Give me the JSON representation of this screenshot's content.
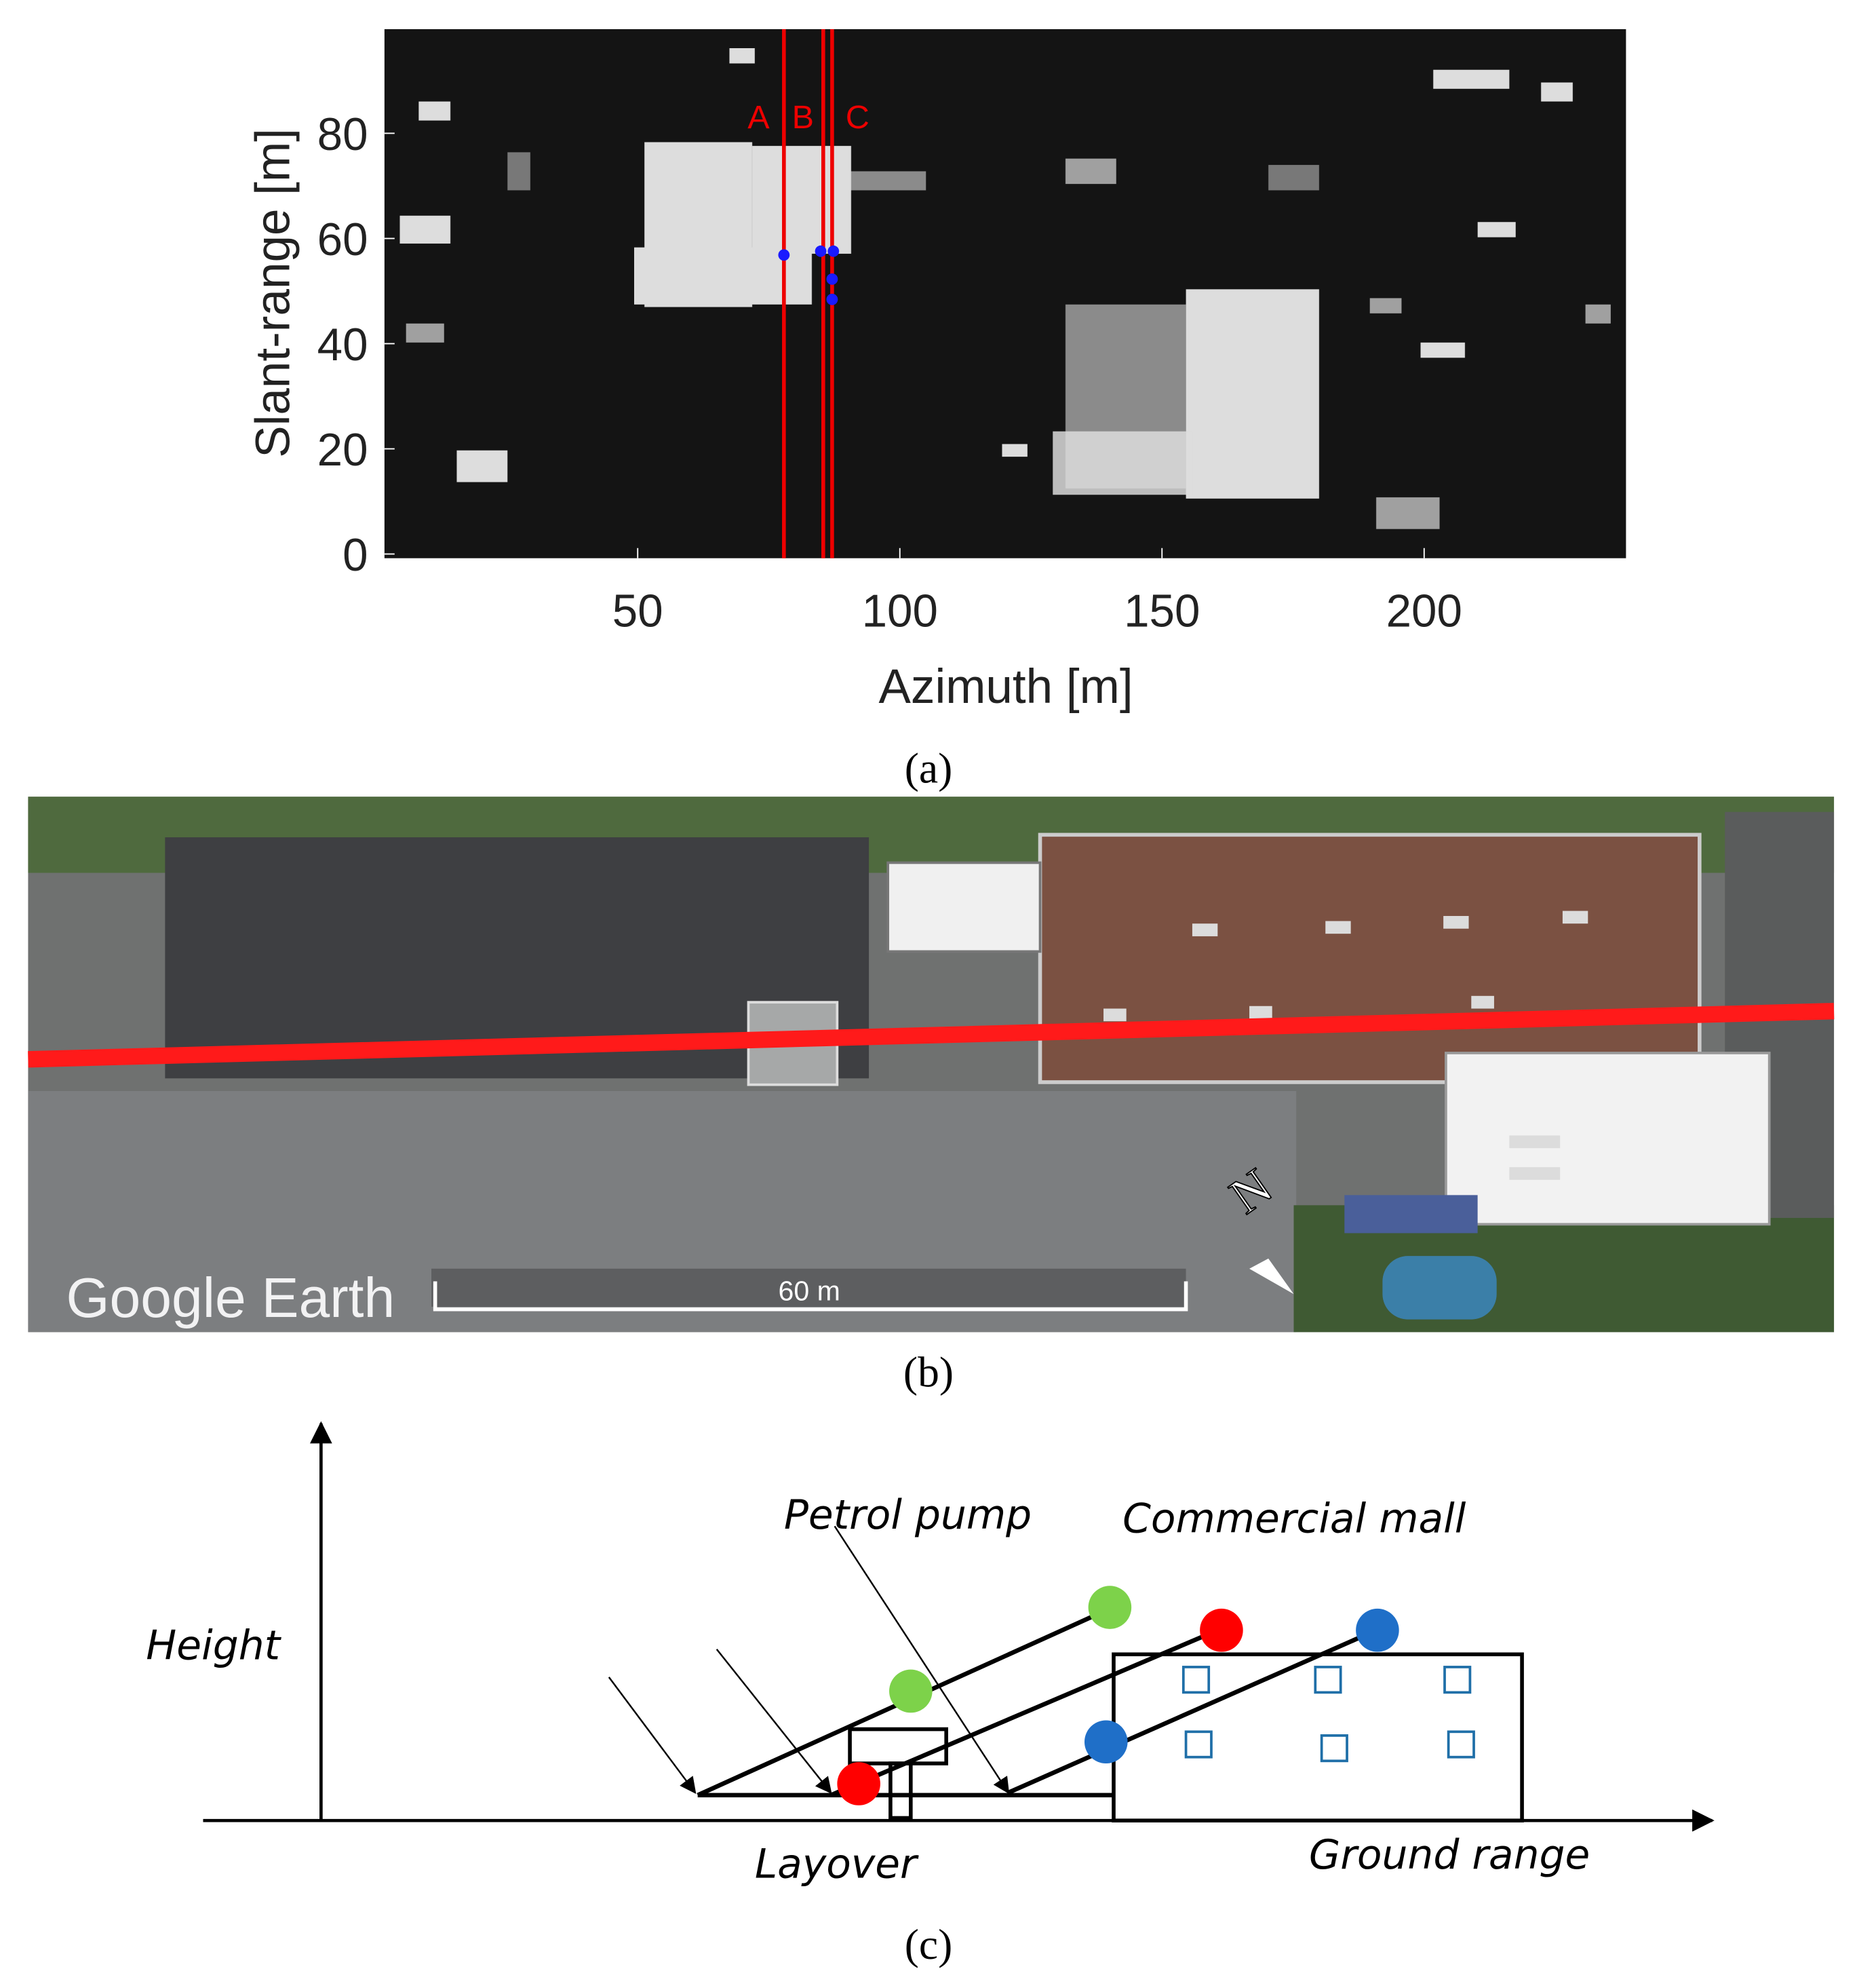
{
  "panel_a": {
    "y_label": "Slant-range [m]",
    "x_label": "Azimuth [m]",
    "xticks": [
      50,
      100,
      150,
      200
    ],
    "yticks": [
      0,
      20,
      40,
      60,
      80
    ],
    "xlim": [
      1.7,
      238.5
    ],
    "ylim": [
      -0.8,
      99.8
    ],
    "line_labels": [
      "A",
      "B",
      "C"
    ],
    "caption": "(a)"
  },
  "panel_b": {
    "watermark": "Google Earth",
    "scale_label": "60 m",
    "north": "N",
    "caption": "(b)"
  },
  "panel_c": {
    "y_axis": "Height",
    "x_axis": "Ground range",
    "labels": [
      "Petrol pump",
      "Commercial mall",
      "Layover"
    ],
    "caption": "(c)"
  }
}
